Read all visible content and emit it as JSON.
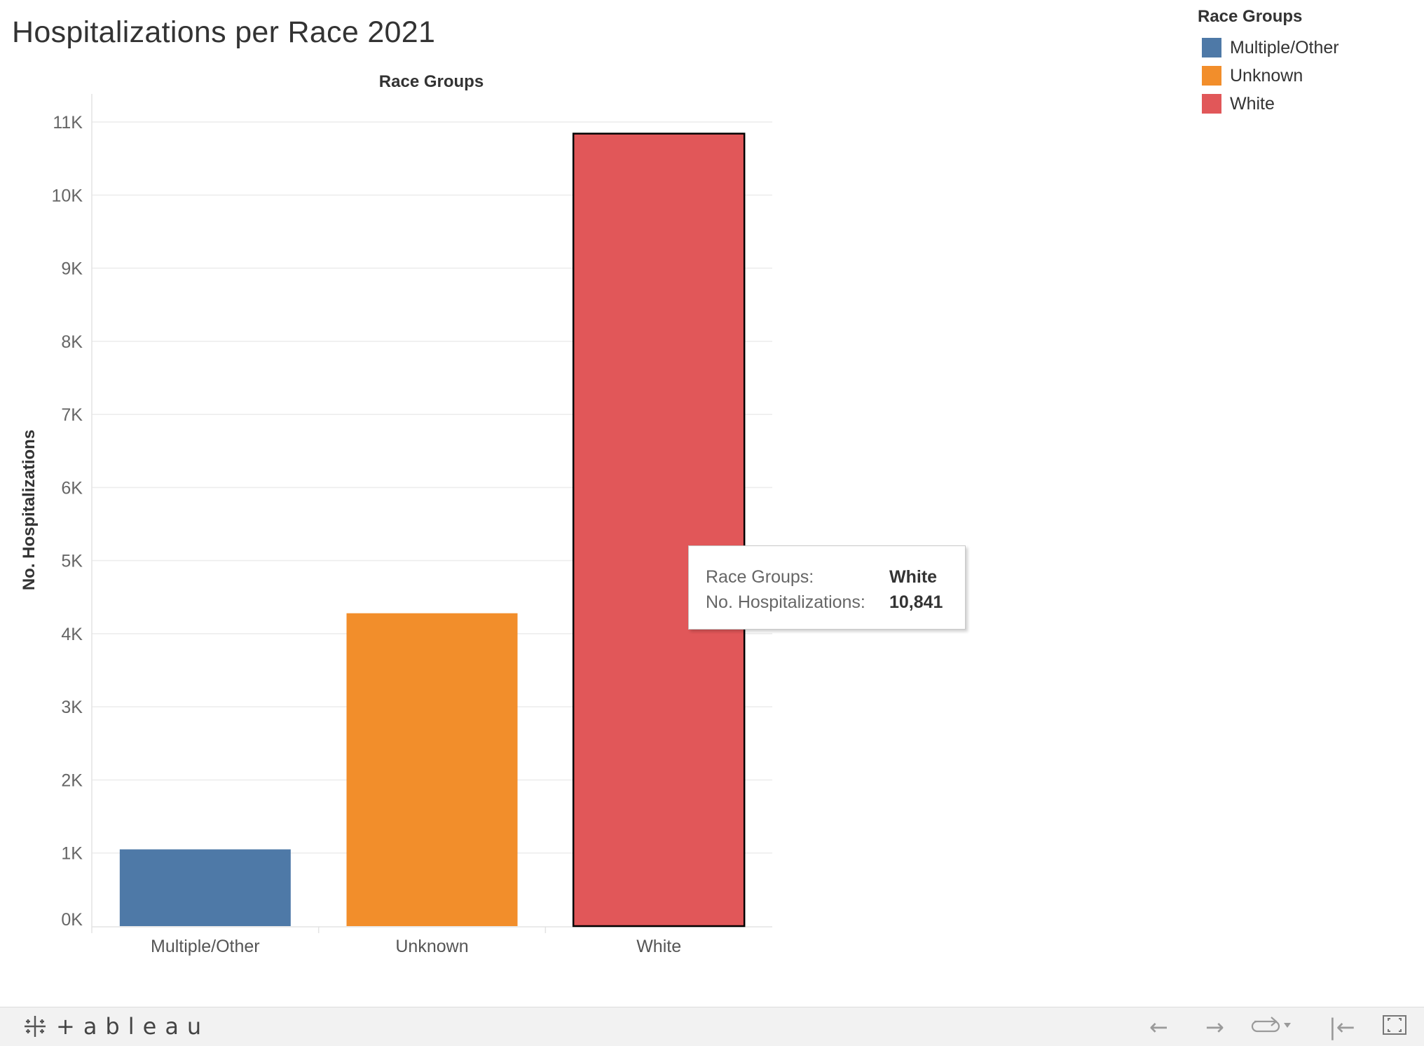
{
  "chart_data": {
    "type": "bar",
    "title": "Hospitalizations per Race 2021",
    "column_header": "Race Groups",
    "xlabel": "",
    "ylabel": "No. Hospitalizations",
    "categories": [
      "Multiple/Other",
      "Unknown",
      "White"
    ],
    "values": [
      1050,
      4280,
      10841
    ],
    "colors": [
      "#4e79a7",
      "#f28e2b",
      "#e15759"
    ],
    "ylim": [
      0,
      11000
    ],
    "yticks": [
      0,
      1000,
      2000,
      3000,
      4000,
      5000,
      6000,
      7000,
      8000,
      9000,
      10000,
      11000
    ],
    "ytick_labels": [
      "0K",
      "1K",
      "2K",
      "3K",
      "4K",
      "5K",
      "6K",
      "7K",
      "8K",
      "9K",
      "10K",
      "11K"
    ],
    "grid": true,
    "highlighted": "White",
    "legend": {
      "title": "Race Groups",
      "placement": "top-right",
      "entries": [
        "Multiple/Other",
        "Unknown",
        "White"
      ]
    }
  },
  "tooltip": {
    "rows": [
      {
        "key": "Race Groups:",
        "value": "White"
      },
      {
        "key": "No. Hospitalizations:",
        "value": "10,841"
      }
    ]
  },
  "footer": {
    "logo_text": "+ableau",
    "controls": {
      "undo_icon": "arrow-left-icon",
      "redo_icon": "arrow-right-icon",
      "revert_icon": "revert-icon",
      "first_icon": "skip-start-icon",
      "fullscreen_icon": "fullscreen-icon"
    }
  }
}
